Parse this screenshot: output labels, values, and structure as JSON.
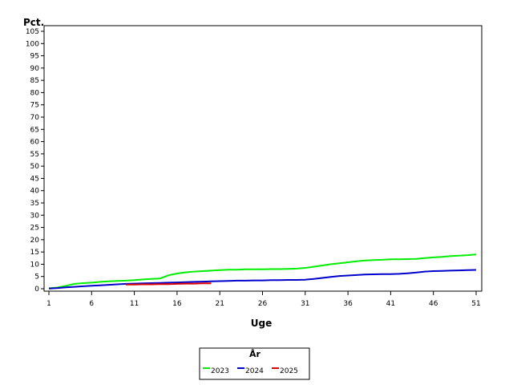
{
  "chart_data": {
    "type": "line",
    "ylabel": "Pct.",
    "xlabel": "Uge",
    "ylim": [
      0,
      105
    ],
    "xlim": [
      1,
      51
    ],
    "yticks": [
      0,
      5,
      10,
      15,
      20,
      25,
      30,
      35,
      40,
      45,
      50,
      55,
      60,
      65,
      70,
      75,
      80,
      85,
      90,
      95,
      100,
      105
    ],
    "xticks": [
      1,
      6,
      11,
      16,
      21,
      26,
      31,
      36,
      41,
      46,
      51
    ],
    "grid": false,
    "legend": {
      "title": "År",
      "position": "bottom-center"
    },
    "series": [
      {
        "name": "2023",
        "color": "#00ee00",
        "x": [
          1,
          2,
          3,
          4,
          5,
          6,
          7,
          8,
          9,
          10,
          11,
          12,
          13,
          14,
          15,
          16,
          17,
          18,
          19,
          20,
          21,
          22,
          23,
          24,
          25,
          26,
          27,
          28,
          29,
          30,
          31,
          32,
          33,
          34,
          35,
          36,
          37,
          38,
          39,
          40,
          41,
          42,
          43,
          44,
          45,
          46,
          47,
          48,
          49,
          50,
          51
        ],
        "values": [
          0.2,
          0.5,
          1.2,
          2.0,
          2.3,
          2.5,
          2.8,
          3.0,
          3.2,
          3.3,
          3.5,
          3.8,
          4.0,
          4.2,
          5.5,
          6.2,
          6.7,
          7.0,
          7.2,
          7.4,
          7.6,
          7.8,
          7.8,
          7.9,
          7.9,
          7.9,
          8.0,
          8.0,
          8.1,
          8.2,
          8.5,
          9.0,
          9.5,
          10.0,
          10.4,
          10.8,
          11.2,
          11.5,
          11.7,
          11.8,
          12.0,
          12.0,
          12.1,
          12.2,
          12.5,
          12.8,
          13.0,
          13.3,
          13.5,
          13.7,
          14.0
        ]
      },
      {
        "name": "2024",
        "color": "#0000cc",
        "x": [
          1,
          2,
          3,
          4,
          5,
          6,
          7,
          8,
          9,
          10,
          11,
          12,
          13,
          14,
          15,
          16,
          17,
          18,
          19,
          20,
          21,
          22,
          23,
          24,
          25,
          26,
          27,
          28,
          29,
          30,
          31,
          32,
          33,
          34,
          35,
          36,
          37,
          38,
          39,
          40,
          41,
          42,
          43,
          44,
          45,
          46,
          47,
          48,
          49,
          50,
          51
        ],
        "values": [
          0.1,
          0.3,
          0.6,
          0.8,
          1.0,
          1.2,
          1.4,
          1.6,
          1.8,
          2.0,
          2.1,
          2.2,
          2.3,
          2.4,
          2.5,
          2.6,
          2.7,
          2.8,
          2.9,
          3.0,
          3.1,
          3.2,
          3.3,
          3.3,
          3.4,
          3.4,
          3.5,
          3.5,
          3.6,
          3.6,
          3.7,
          4.0,
          4.4,
          4.8,
          5.2,
          5.4,
          5.6,
          5.8,
          5.9,
          6.0,
          6.0,
          6.1,
          6.3,
          6.6,
          7.0,
          7.2,
          7.3,
          7.4,
          7.5,
          7.6,
          7.7
        ]
      },
      {
        "name": "2025",
        "color": "#dd0000",
        "x": [
          10,
          11,
          12,
          13,
          14,
          15,
          16,
          17,
          18,
          19,
          20
        ],
        "values": [
          1.7,
          1.7,
          1.8,
          1.8,
          1.9,
          1.9,
          2.0,
          2.1,
          2.1,
          2.2,
          2.2
        ]
      }
    ]
  }
}
